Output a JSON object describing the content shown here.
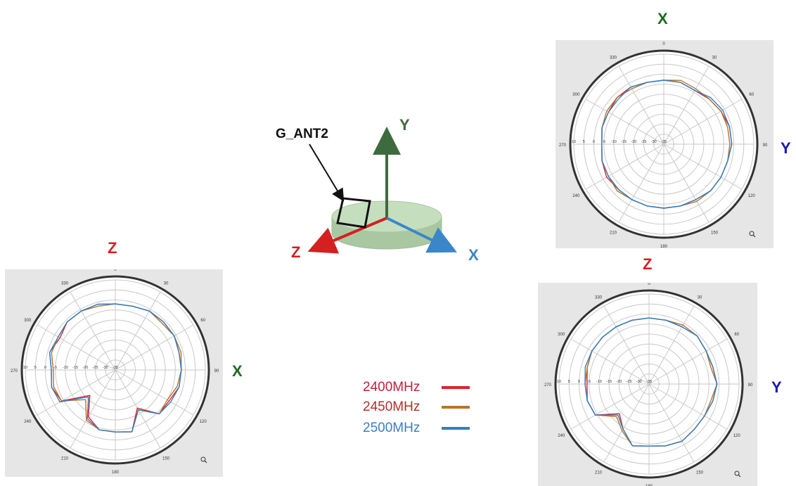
{
  "colors": {
    "x_axis_label": "#1f6b1f",
    "y_axis_label": "#1a1ab0",
    "z_axis_label": "#d42020",
    "x_arrow": "#3b86c8",
    "y_arrow": "#3e6b3e",
    "z_arrow": "#d42020",
    "x_center_label": "#3b86c8",
    "y_center_label": "#3e6b3e",
    "disk": "#b8d6b0"
  },
  "antenna": {
    "label": "G_ANT2",
    "axes": {
      "x": "X",
      "y": "Y",
      "z": "Z"
    }
  },
  "legend": [
    {
      "label": "2400MHz",
      "text_color": "#c0203a",
      "line_color": "#e0202a"
    },
    {
      "label": "2450MHz",
      "text_color": "#b03028",
      "line_color": "#b8742a"
    },
    {
      "label": "2500MHz",
      "text_color": "#3b7fc0",
      "line_color": "#2c82c8"
    }
  ],
  "chart_data": [
    {
      "type": "polar",
      "plane": "ZX",
      "labels": {
        "top": "Z",
        "right": "X"
      },
      "angle_ticks": [
        "0",
        "30",
        "60",
        "90",
        "120",
        "150",
        "180",
        "210",
        "240",
        "270",
        "300",
        "330"
      ],
      "radial_ticks": [
        "10",
        "5",
        "0",
        "-5",
        "-10",
        "-15",
        "-20",
        "-25",
        "-30",
        "-35"
      ],
      "rlim": [
        -35,
        10
      ],
      "series": [
        {
          "name": "2400MHz",
          "color": "#e0202a",
          "angles": [
            0,
            15,
            30,
            45,
            60,
            75,
            90,
            105,
            120,
            135,
            150,
            165,
            180,
            195,
            210,
            225,
            240,
            255,
            270,
            285,
            300,
            315,
            330,
            345
          ],
          "values": [
            -2,
            -2,
            -1,
            -1,
            -1,
            -2,
            -2,
            -2,
            -4,
            -4,
            -13,
            -3,
            -4,
            -4,
            -8,
            -17,
            -4,
            -2,
            -3,
            -1,
            -3,
            -1,
            -1,
            -1
          ]
        },
        {
          "name": "2450MHz",
          "color": "#b8742a",
          "angles": [
            0,
            15,
            30,
            45,
            60,
            75,
            90,
            105,
            120,
            135,
            150,
            165,
            180,
            195,
            210,
            225,
            240,
            255,
            270,
            285,
            300,
            315,
            330,
            345
          ],
          "values": [
            -2,
            -2,
            -1,
            -2,
            -1,
            -1,
            -2,
            -3,
            -5,
            -4,
            -12,
            -3,
            -4,
            -4,
            -6,
            -14,
            -4,
            -3,
            -4,
            -2,
            -2,
            -1,
            -1,
            -2
          ]
        },
        {
          "name": "2500MHz",
          "color": "#2c82c8",
          "angles": [
            0,
            15,
            30,
            45,
            60,
            75,
            90,
            105,
            120,
            135,
            150,
            165,
            180,
            195,
            210,
            225,
            240,
            255,
            270,
            285,
            300,
            315,
            330,
            345
          ],
          "values": [
            -2,
            -2,
            -1,
            -1,
            -1,
            -2,
            -2,
            -2,
            -3,
            -4,
            -12,
            -3,
            -4,
            -4,
            -7,
            -16,
            -3,
            -2,
            -3,
            -1,
            -2,
            -1,
            -1,
            -1
          ]
        }
      ]
    },
    {
      "type": "polar",
      "plane": "XY",
      "labels": {
        "top": "X",
        "right": "Y"
      },
      "angle_ticks": [
        "0",
        "30",
        "60",
        "90",
        "120",
        "150",
        "180",
        "210",
        "240",
        "270",
        "300",
        "330"
      ],
      "radial_ticks": [
        "10",
        "5",
        "0",
        "-5",
        "-10",
        "-15",
        "-20",
        "-25",
        "-30",
        "-35"
      ],
      "rlim": [
        -35,
        10
      ],
      "series": [
        {
          "name": "2400MHz",
          "color": "#e0202a",
          "angles": [
            0,
            15,
            30,
            45,
            60,
            75,
            90,
            105,
            120,
            135,
            150,
            165,
            180,
            195,
            210,
            225,
            240,
            255,
            270,
            285,
            300,
            315,
            330,
            345
          ],
          "values": [
            -3,
            -3,
            -4,
            -3,
            -2,
            -1,
            -1,
            -2,
            -2,
            -2,
            -3,
            -3,
            -3,
            -3,
            -3,
            -3,
            -2,
            -3,
            -4,
            -3,
            -3,
            -2,
            -2,
            -3
          ]
        },
        {
          "name": "2450MHz",
          "color": "#b8742a",
          "angles": [
            0,
            15,
            30,
            45,
            60,
            75,
            90,
            105,
            120,
            135,
            150,
            165,
            180,
            195,
            210,
            225,
            240,
            255,
            270,
            285,
            300,
            315,
            330,
            345
          ],
          "values": [
            -3,
            -2,
            -3,
            -3,
            -2,
            -2,
            -2,
            -2,
            -2,
            -2,
            -2,
            -3,
            -3,
            -3,
            -3,
            -2,
            -3,
            -3,
            -4,
            -3,
            -2,
            -2,
            -3,
            -3
          ]
        },
        {
          "name": "2500MHz",
          "color": "#2c82c8",
          "angles": [
            0,
            15,
            30,
            45,
            60,
            75,
            90,
            105,
            120,
            135,
            150,
            165,
            180,
            195,
            210,
            225,
            240,
            255,
            270,
            285,
            300,
            315,
            330,
            345
          ],
          "values": [
            -3,
            -3,
            -4,
            -2,
            -1,
            -1,
            -1,
            -2,
            -2,
            -2,
            -3,
            -3,
            -3,
            -3,
            -3,
            -3,
            -3,
            -3,
            -4,
            -3,
            -3,
            -3,
            -2,
            -3
          ]
        }
      ]
    },
    {
      "type": "polar",
      "plane": "ZY",
      "labels": {
        "top": "Z",
        "right": "Y"
      },
      "angle_ticks": [
        "0",
        "30",
        "60",
        "90",
        "120",
        "150",
        "180",
        "210",
        "240",
        "270",
        "300",
        "330"
      ],
      "radial_ticks": [
        "10",
        "5",
        "0",
        "-5",
        "-10",
        "-15",
        "-20",
        "-25",
        "-30",
        "-35"
      ],
      "rlim": [
        -35,
        10
      ],
      "series": [
        {
          "name": "2400MHz",
          "color": "#e0202a",
          "angles": [
            0,
            15,
            30,
            45,
            60,
            75,
            90,
            105,
            120,
            135,
            150,
            165,
            180,
            195,
            210,
            225,
            240,
            255,
            270,
            285,
            300,
            315,
            330,
            345
          ],
          "values": [
            -2,
            -2,
            -2,
            -1,
            -2,
            -2,
            -1,
            -2,
            -3,
            -3,
            -2,
            -3,
            -4,
            -3,
            -9,
            -14,
            -4,
            -3,
            -4,
            -3,
            -2,
            -2,
            -2,
            -2
          ]
        },
        {
          "name": "2450MHz",
          "color": "#b8742a",
          "angles": [
            0,
            15,
            30,
            45,
            60,
            75,
            90,
            105,
            120,
            135,
            150,
            165,
            180,
            195,
            210,
            225,
            240,
            255,
            270,
            285,
            300,
            315,
            330,
            345
          ],
          "values": [
            -2,
            -2,
            -1,
            -1,
            -2,
            -3,
            -1,
            -3,
            -3,
            -3,
            -2,
            -3,
            -4,
            -3,
            -8,
            -12,
            -4,
            -3,
            -3,
            -3,
            -2,
            -2,
            -2,
            -2
          ]
        },
        {
          "name": "2500MHz",
          "color": "#2c82c8",
          "angles": [
            0,
            15,
            30,
            45,
            60,
            75,
            90,
            105,
            120,
            135,
            150,
            165,
            180,
            195,
            210,
            225,
            240,
            255,
            270,
            285,
            300,
            315,
            330,
            345
          ],
          "values": [
            -2,
            -2,
            -2,
            -1,
            -2,
            -2,
            -1,
            -2,
            -3,
            -3,
            -2,
            -3,
            -4,
            -3,
            -9,
            -13,
            -4,
            -3,
            -3,
            -2,
            -2,
            -2,
            -2,
            -2
          ]
        }
      ]
    }
  ]
}
